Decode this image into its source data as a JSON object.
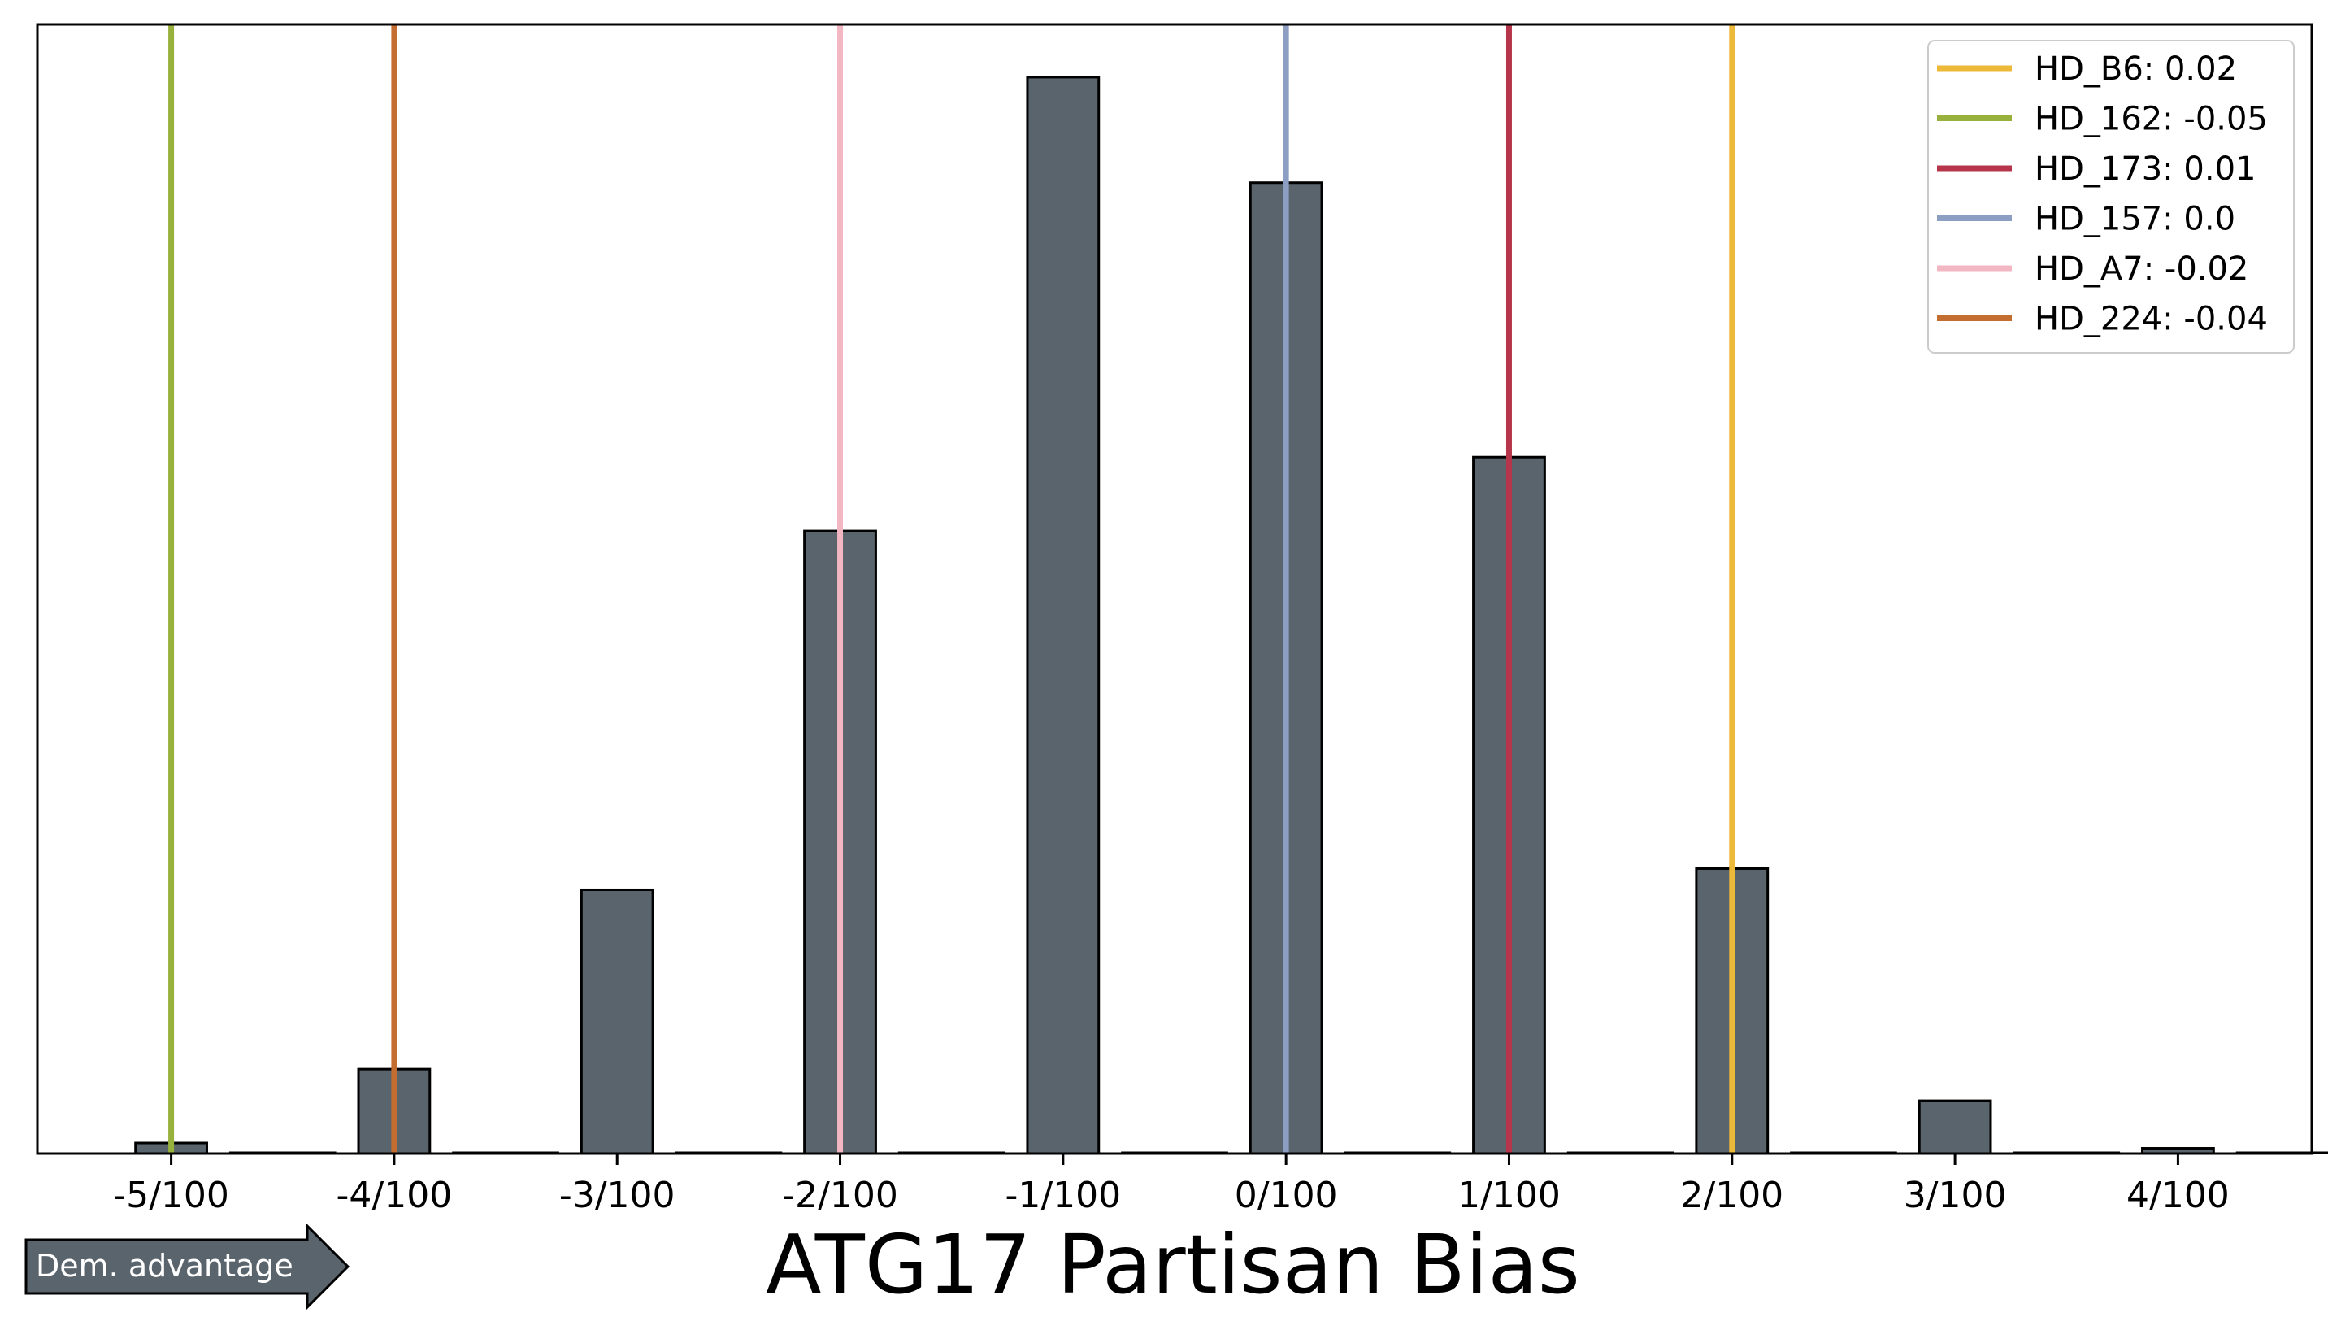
{
  "chart_data": {
    "type": "bar",
    "title": "ATG17 Partisan Bias",
    "xlabel": "",
    "ylabel": "",
    "categories": [
      "-5/100",
      "-4/100",
      "-3/100",
      "-2/100",
      "-1/100",
      "0/100",
      "1/100",
      "2/100",
      "3/100",
      "4/100"
    ],
    "x_centers": [
      -0.05,
      -0.04,
      -0.03,
      -0.02,
      -0.01,
      0.0,
      0.01,
      0.02,
      0.03,
      0.04
    ],
    "values": [
      1,
      8,
      25,
      59,
      102,
      92,
      66,
      27,
      5,
      0.5
    ],
    "xlim": [
      -0.056,
      0.046
    ],
    "ylim": [
      0,
      107
    ],
    "bar_width": 0.0032,
    "bar_color": "#5a646c",
    "y_ticks_visible": false,
    "grid": false,
    "reference_lines": [
      {
        "name": "HD_B6",
        "value": 0.02,
        "label": "HD_B6: 0.02",
        "color": "#ecb939"
      },
      {
        "name": "HD_162",
        "value": -0.05,
        "label": "HD_162: -0.05",
        "color": "#98b03c"
      },
      {
        "name": "HD_173",
        "value": 0.01,
        "label": "HD_173: 0.01",
        "color": "#b7354a"
      },
      {
        "name": "HD_157",
        "value": 0.0,
        "label": "HD_157: 0.0",
        "color": "#8c9fc3"
      },
      {
        "name": "HD_A7",
        "value": -0.02,
        "label": "HD_A7: -0.02",
        "color": "#f2b7c3"
      },
      {
        "name": "HD_224",
        "value": -0.04,
        "label": "HD_224: -0.04",
        "color": "#c46d31"
      }
    ],
    "legend_position": "top-right"
  },
  "annotation": {
    "arrow_label": "Dem. advantage",
    "arrow_color": "#5a646c"
  }
}
